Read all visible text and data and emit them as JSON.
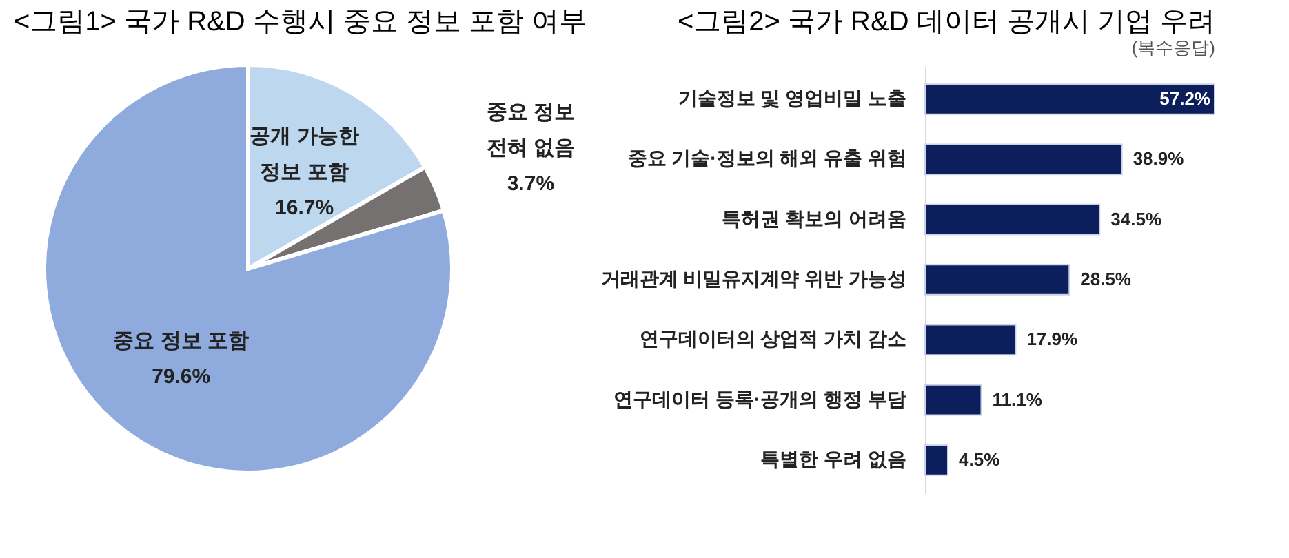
{
  "chart_data": [
    {
      "type": "pie",
      "title": "<그림1> 국가 R&D 수행시 중요 정보 포함 여부",
      "categories": [
        "공개 가능한 정보 포함",
        "중요 정보 전혀 없음",
        "중요 정보 포함"
      ],
      "values": [
        16.7,
        3.7,
        79.6
      ],
      "colors": [
        "#bdd7ee",
        "#767171",
        "#8faadc"
      ],
      "value_labels": [
        "16.7%",
        "3.7%",
        "79.6%"
      ]
    },
    {
      "type": "bar",
      "orientation": "horizontal",
      "title": "<그림2> 국가 R&D 데이터 공개시 기업 우려",
      "subtitle": "(복수응답)",
      "categories": [
        "기술정보 및 영업비밀 노출",
        "중요 기술·정보의 해외 유출 위험",
        "특허권 확보의 어려움",
        "거래관계 비밀유지계약 위반 가능성",
        "연구데이터의 상업적 가치 감소",
        "연구데이터 등록·공개의 행정 부담",
        "특별한 우려 없음"
      ],
      "values": [
        57.2,
        38.9,
        34.5,
        28.5,
        17.9,
        11.1,
        4.5
      ],
      "color": "#0c1f5c",
      "value_labels": [
        "57.2%",
        "38.9%",
        "34.5%",
        "28.5%",
        "17.9%",
        "11.1%",
        "4.5%"
      ]
    }
  ]
}
